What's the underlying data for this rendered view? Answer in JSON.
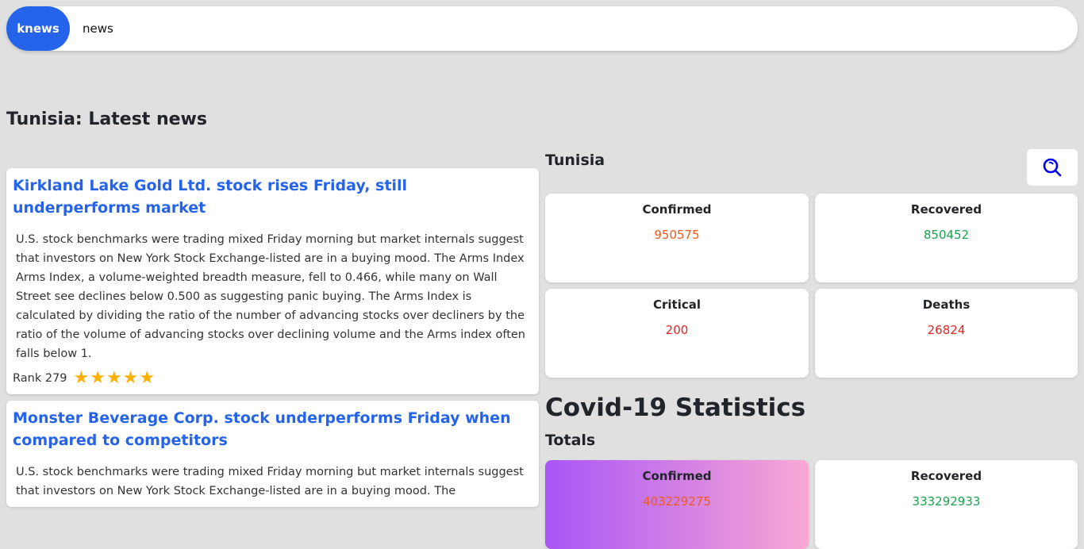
{
  "header": {
    "brand": "knews",
    "search_value": "news"
  },
  "page_title": "Tunisia: Latest news",
  "articles": [
    {
      "title": "Kirkland Lake Gold Ltd. stock rises Friday, still underperforms market",
      "body": "U.S. stock benchmarks were trading mixed Friday morning but market internals suggest that investors on New York Stock Exchange-listed are in a buying mood. The Arms Index Arms Index, a volume-weighted breadth measure, fell to 0.466, while many on Wall Street see declines below 0.500 as suggesting panic buying. The Arms Index is calculated by dividing the ratio of the number of advancing stocks over decliners by the ratio of the volume of advancing stocks over declining volume and the Arms index often falls below 1.",
      "rank": "Rank 279",
      "stars": 5
    },
    {
      "title": "Monster Beverage Corp. stock underperforms Friday when compared to competitors",
      "body": "U.S. stock benchmarks were trading mixed Friday morning but market internals suggest that investors on New York Stock Exchange-listed are in a buying mood. The"
    }
  ],
  "country_stats": {
    "country": "Tunisia",
    "icon": "search-zoom-icon",
    "cards": [
      {
        "label": "Confirmed",
        "value": "950575",
        "color": "#f05a1a"
      },
      {
        "label": "Recovered",
        "value": "850452",
        "color": "#16a34a"
      },
      {
        "label": "Critical",
        "value": "200",
        "color": "#dc2626"
      },
      {
        "label": "Deaths",
        "value": "26824",
        "color": "#dc2626"
      }
    ]
  },
  "covid": {
    "title": "Covid-19 Statistics",
    "subtitle": "Totals",
    "cards": [
      {
        "label": "Confirmed",
        "value": "403229275",
        "color": "#f05a1a"
      },
      {
        "label": "Recovered",
        "value": "333292933",
        "color": "#16a34a"
      }
    ]
  }
}
